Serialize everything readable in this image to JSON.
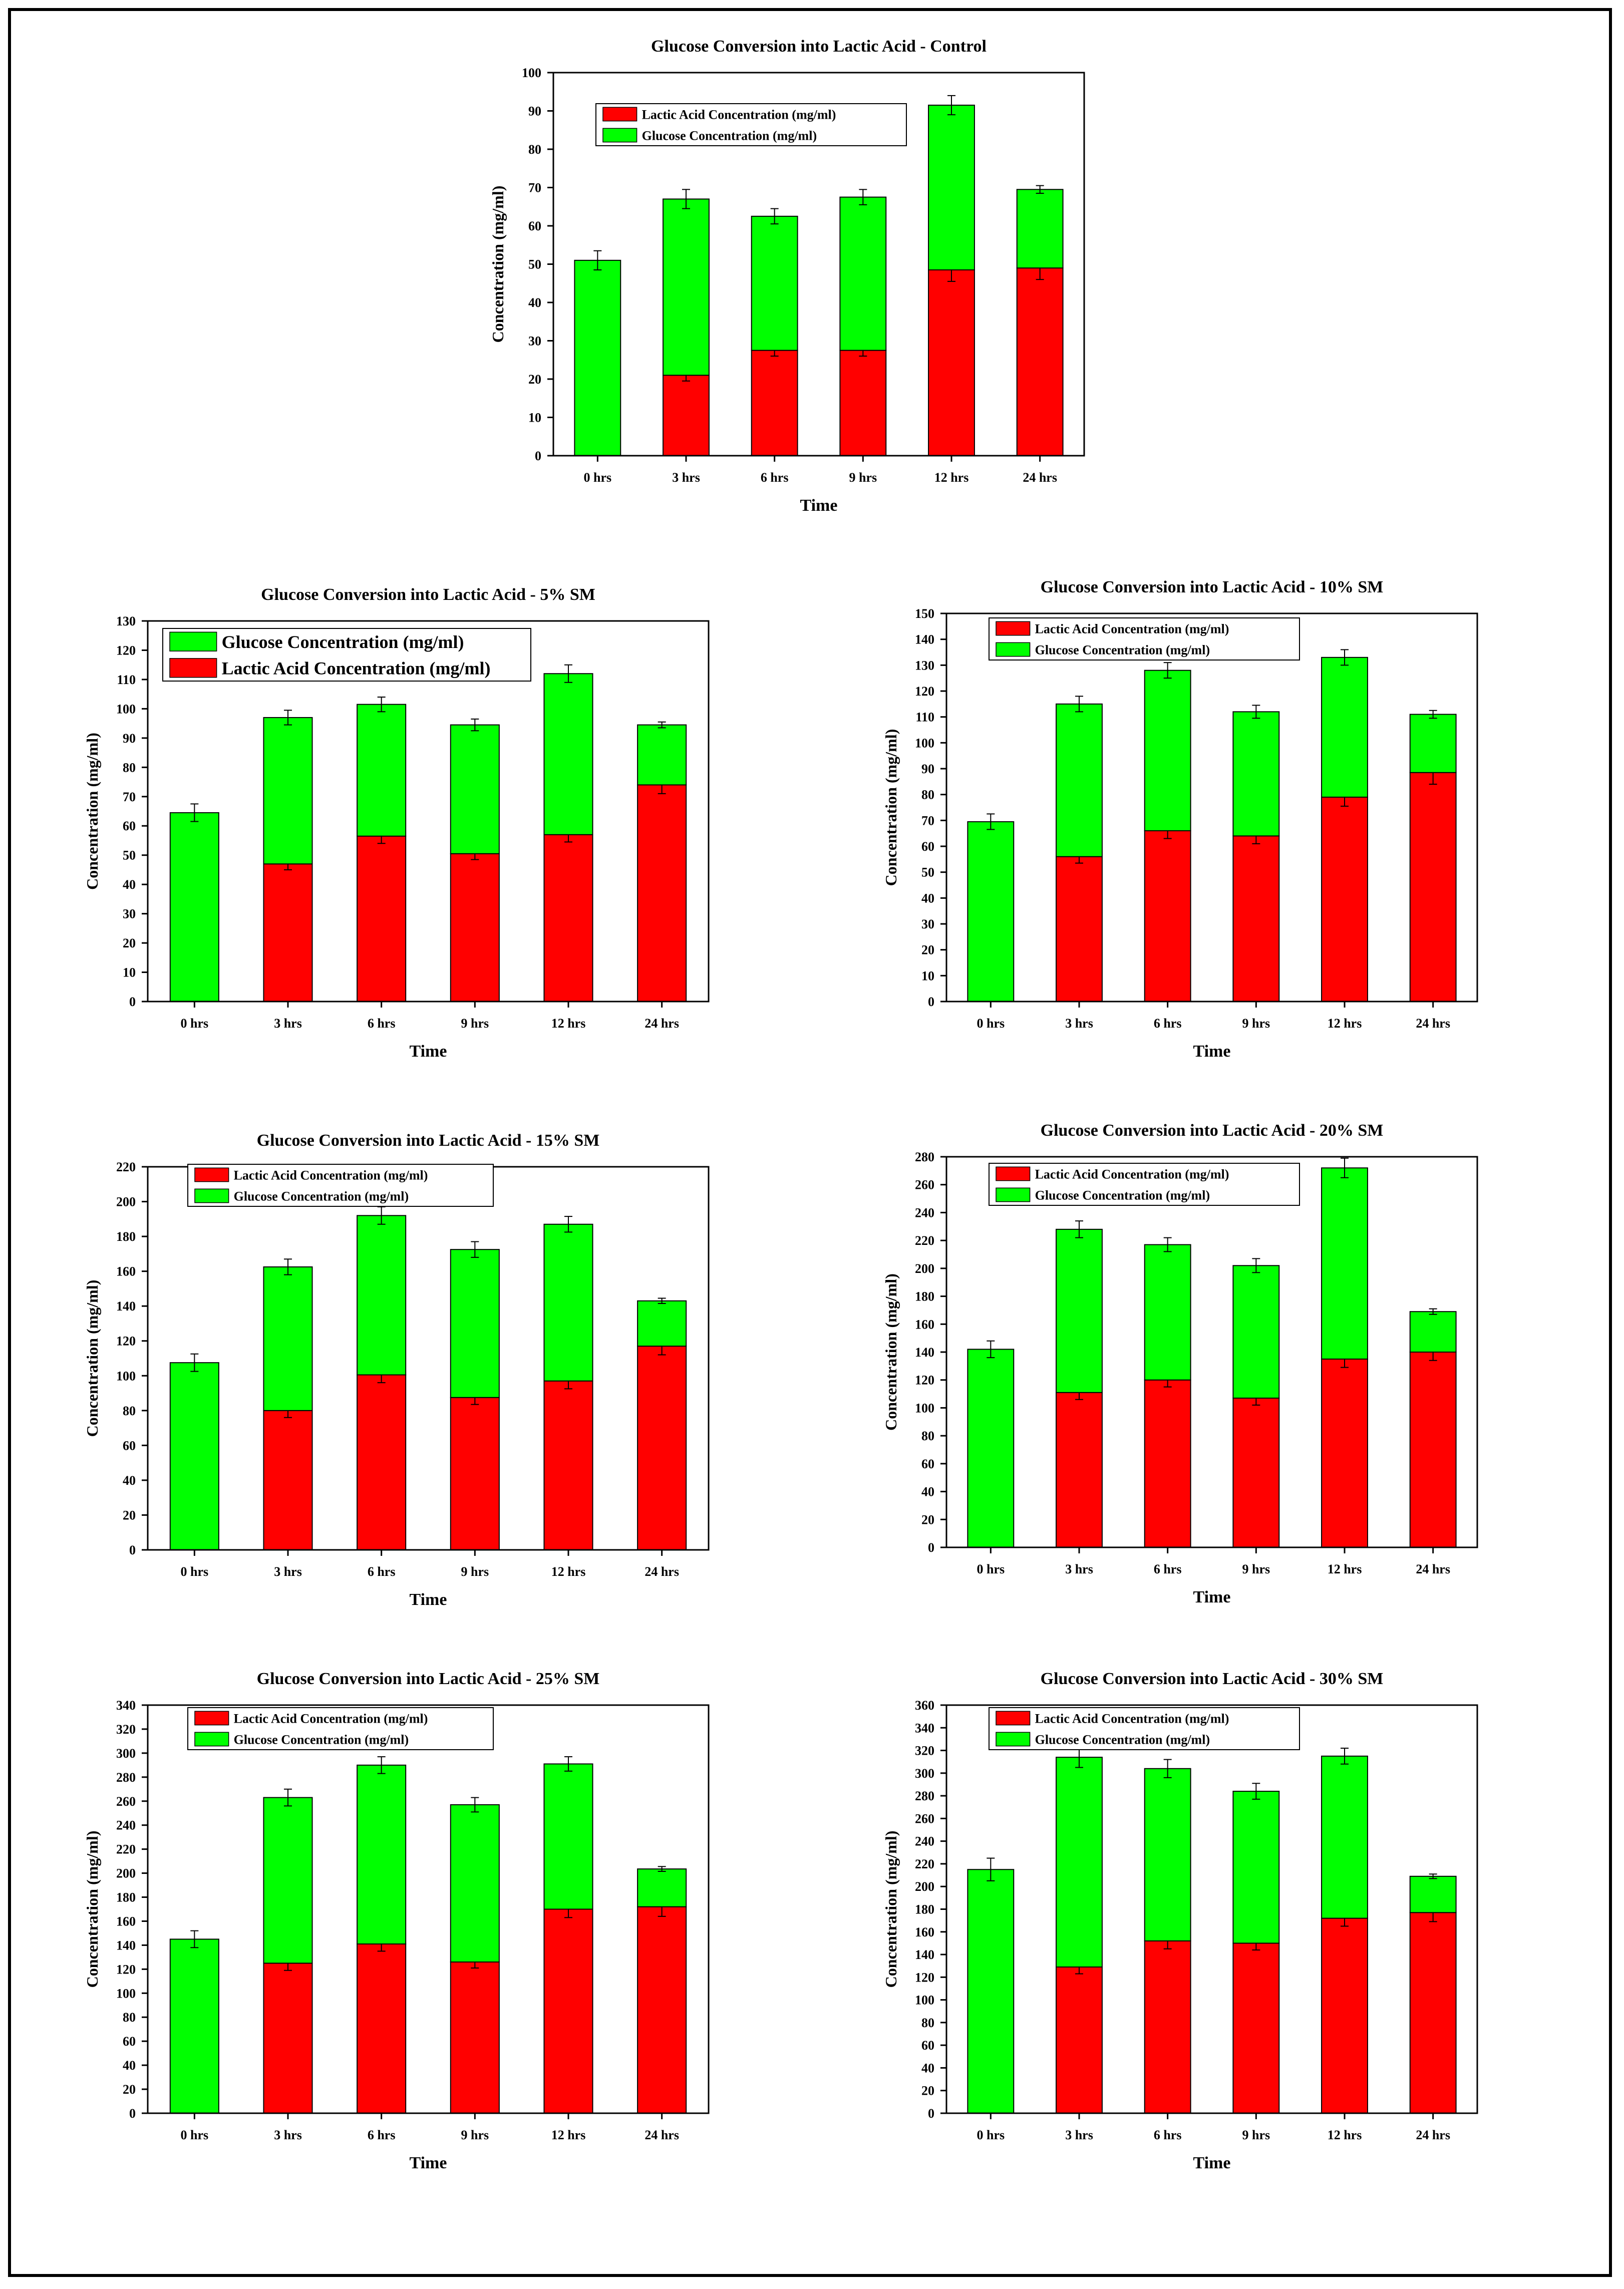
{
  "colors": {
    "lactic": "#ff0000",
    "glucose": "#00ff00",
    "axis": "#000000"
  },
  "chart_data": [
    {
      "type": "bar",
      "stacked": true,
      "title": "Glucose Conversion into Lactic Acid - Control",
      "xlabel": "Time",
      "ylabel": "Concentration (mg/ml)",
      "categories": [
        "0 hrs",
        "3 hrs",
        "6 hrs",
        "9 hrs",
        "12 hrs",
        "24 hrs"
      ],
      "ylim": [
        0,
        100
      ],
      "ytick_step": 10,
      "legend_position": "top-left",
      "legend": [
        "Lactic Acid Concentration (mg/ml)",
        "Glucose Concentration (mg/ml)"
      ],
      "series": [
        {
          "name": "Lactic Acid Concentration (mg/ml)",
          "color_key": "lactic",
          "values": [
            0,
            21,
            27.5,
            27.5,
            48.5,
            49
          ],
          "errors": [
            0,
            1.5,
            1.5,
            1.5,
            3,
            3
          ]
        },
        {
          "name": "Glucose Concentration (mg/ml)",
          "color_key": "glucose",
          "values": [
            51,
            46,
            35,
            40,
            43,
            20.5
          ],
          "errors": [
            2.5,
            2.5,
            2,
            2,
            2.5,
            1
          ]
        }
      ]
    },
    {
      "type": "bar",
      "stacked": true,
      "title": "Glucose Conversion into Lactic Acid - 5% SM",
      "xlabel": "Time",
      "ylabel": "Concentration (mg/ml)",
      "categories": [
        "0 hrs",
        "3 hrs",
        "6 hrs",
        "9 hrs",
        "12 hrs",
        "24 hrs"
      ],
      "ylim": [
        0,
        130
      ],
      "ytick_step": 10,
      "legend_position": "top-left",
      "legend": [
        "Glucose Concentration (mg/ml)",
        "Lactic Acid Concentration (mg/ml)"
      ],
      "series": [
        {
          "name": "Lactic Acid Concentration (mg/ml)",
          "color_key": "lactic",
          "values": [
            0,
            47,
            56.5,
            50.5,
            57,
            74
          ],
          "errors": [
            0,
            2,
            2.5,
            2,
            2.5,
            3
          ]
        },
        {
          "name": "Glucose Concentration (mg/ml)",
          "color_key": "glucose",
          "values": [
            64.5,
            50,
            45,
            44,
            55,
            20.5
          ],
          "errors": [
            3,
            2.5,
            2.5,
            2,
            3,
            1
          ]
        }
      ]
    },
    {
      "type": "bar",
      "stacked": true,
      "title": "Glucose Conversion into Lactic Acid - 10% SM",
      "xlabel": "Time",
      "ylabel": "Concentration (mg/ml)",
      "categories": [
        "0 hrs",
        "3 hrs",
        "6 hrs",
        "9 hrs",
        "12 hrs",
        "24 hrs"
      ],
      "ylim": [
        0,
        150
      ],
      "ytick_step": 10,
      "legend_position": "top-left",
      "legend": [
        "Lactic Acid Concentration (mg/ml)",
        "Glucose Concentration (mg/ml)"
      ],
      "series": [
        {
          "name": "Lactic Acid Concentration (mg/ml)",
          "color_key": "lactic",
          "values": [
            0,
            56,
            66,
            64,
            79,
            88.5
          ],
          "errors": [
            0,
            2.5,
            3,
            3,
            3.5,
            4.5
          ]
        },
        {
          "name": "Glucose Concentration (mg/ml)",
          "color_key": "glucose",
          "values": [
            69.5,
            59,
            62,
            48,
            54,
            22.5
          ],
          "errors": [
            3,
            3,
            3,
            2.5,
            3,
            1.5
          ]
        }
      ]
    },
    {
      "type": "bar",
      "stacked": true,
      "title": "Glucose Conversion into Lactic Acid - 15% SM",
      "xlabel": "Time",
      "ylabel": "Concentration (mg/ml)",
      "categories": [
        "0 hrs",
        "3 hrs",
        "6 hrs",
        "9 hrs",
        "12 hrs",
        "24 hrs"
      ],
      "ylim": [
        0,
        220
      ],
      "ytick_step": 20,
      "legend_position": "top-left",
      "legend": [
        "Lactic Acid Concentration (mg/ml)",
        "Glucose Concentration (mg/ml)"
      ],
      "series": [
        {
          "name": "Lactic Acid Concentration (mg/ml)",
          "color_key": "lactic",
          "values": [
            0,
            80,
            100.5,
            87.5,
            97,
            117
          ],
          "errors": [
            0,
            4,
            4.5,
            4,
            4.5,
            5
          ]
        },
        {
          "name": "Glucose Concentration (mg/ml)",
          "color_key": "glucose",
          "values": [
            107.5,
            82.5,
            91.5,
            85,
            90,
            26
          ],
          "errors": [
            5,
            4.5,
            5,
            4.5,
            4.5,
            1.5
          ]
        }
      ]
    },
    {
      "type": "bar",
      "stacked": true,
      "title": "Glucose Conversion into Lactic Acid - 20% SM",
      "xlabel": "Time",
      "ylabel": "Concentration (mg/ml)",
      "categories": [
        "0 hrs",
        "3 hrs",
        "6 hrs",
        "9 hrs",
        "12 hrs",
        "24 hrs"
      ],
      "ylim": [
        0,
        280
      ],
      "ytick_step": 20,
      "legend_position": "top-left",
      "legend": [
        "Lactic Acid Concentration (mg/ml)",
        "Glucose Concentration (mg/ml)"
      ],
      "series": [
        {
          "name": "Lactic Acid Concentration (mg/ml)",
          "color_key": "lactic",
          "values": [
            0,
            111,
            120,
            107,
            135,
            140
          ],
          "errors": [
            0,
            5,
            5,
            5,
            6,
            6
          ]
        },
        {
          "name": "Glucose Concentration (mg/ml)",
          "color_key": "glucose",
          "values": [
            142,
            117,
            97,
            95,
            137,
            29
          ],
          "errors": [
            6,
            6,
            5,
            5,
            7,
            2
          ]
        }
      ]
    },
    {
      "type": "bar",
      "stacked": true,
      "title": "Glucose Conversion into Lactic Acid - 25% SM",
      "xlabel": "Time",
      "ylabel": "Concentration (mg/ml)",
      "categories": [
        "0 hrs",
        "3 hrs",
        "6 hrs",
        "9 hrs",
        "12 hrs",
        "24 hrs"
      ],
      "ylim": [
        0,
        340
      ],
      "ytick_step": 20,
      "legend_position": "top-left",
      "legend": [
        "Lactic Acid Concentration (mg/ml)",
        "Glucose Concentration (mg/ml)"
      ],
      "series": [
        {
          "name": "Lactic Acid Concentration (mg/ml)",
          "color_key": "lactic",
          "values": [
            0,
            125,
            141,
            126,
            170,
            172
          ],
          "errors": [
            0,
            6,
            6,
            5,
            7,
            8
          ]
        },
        {
          "name": "Glucose Concentration (mg/ml)",
          "color_key": "glucose",
          "values": [
            145,
            138,
            149,
            131,
            121,
            31.5
          ],
          "errors": [
            7,
            7,
            7,
            6,
            6,
            2
          ]
        }
      ]
    },
    {
      "type": "bar",
      "stacked": true,
      "title": "Glucose Conversion into Lactic Acid - 30% SM",
      "xlabel": "Time",
      "ylabel": "Concentration (mg/ml)",
      "categories": [
        "0 hrs",
        "3 hrs",
        "6 hrs",
        "9 hrs",
        "12 hrs",
        "24 hrs"
      ],
      "ylim": [
        0,
        360
      ],
      "ytick_step": 20,
      "legend_position": "top-left",
      "legend": [
        "Lactic Acid Concentration (mg/ml)",
        "Glucose Concentration (mg/ml)"
      ],
      "series": [
        {
          "name": "Lactic Acid Concentration (mg/ml)",
          "color_key": "lactic",
          "values": [
            0,
            129,
            152,
            150,
            172,
            177
          ],
          "errors": [
            0,
            6,
            7,
            6,
            7,
            8
          ]
        },
        {
          "name": "Glucose Concentration (mg/ml)",
          "color_key": "glucose",
          "values": [
            215,
            185,
            152,
            134,
            143,
            32
          ],
          "errors": [
            10,
            9,
            8,
            7,
            7,
            2
          ]
        }
      ]
    }
  ]
}
